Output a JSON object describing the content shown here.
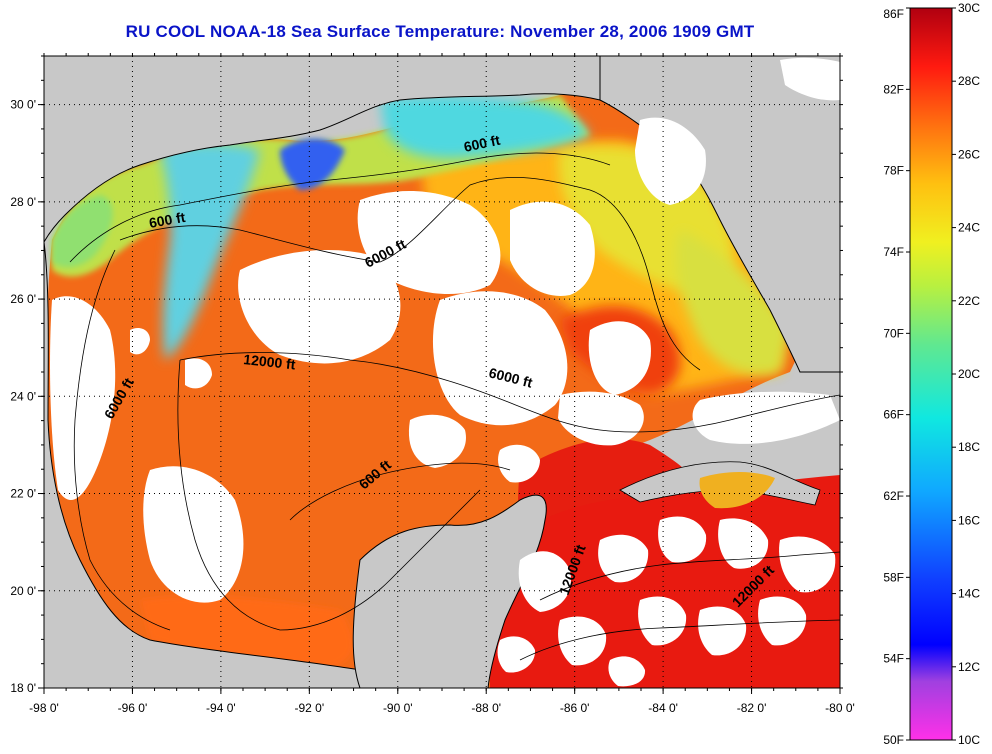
{
  "title": "RU COOL  NOAA-18  Sea Surface Temperature:  November 28, 2006 1909 GMT",
  "map": {
    "lon_ticks": [
      {
        "lon": -98,
        "label": "-98 0'"
      },
      {
        "lon": -96,
        "label": "-96 0'"
      },
      {
        "lon": -94,
        "label": "-94 0'"
      },
      {
        "lon": -92,
        "label": "-92 0'"
      },
      {
        "lon": -90,
        "label": "-90 0'"
      },
      {
        "lon": -88,
        "label": "-88 0'"
      },
      {
        "lon": -86,
        "label": "-86 0'"
      },
      {
        "lon": -84,
        "label": "-84 0'"
      },
      {
        "lon": -82,
        "label": "-82 0'"
      },
      {
        "lon": -80,
        "label": "-80 0'"
      }
    ],
    "lat_ticks": [
      {
        "lat": 18,
        "label": "18 0'"
      },
      {
        "lat": 20,
        "label": "20 0'"
      },
      {
        "lat": 22,
        "label": "22 0'"
      },
      {
        "lat": 24,
        "label": "24 0'"
      },
      {
        "lat": 26,
        "label": "26 0'"
      },
      {
        "lat": 28,
        "label": "28 0'"
      },
      {
        "lat": 30,
        "label": "30 0'"
      }
    ],
    "lon_range": [
      -98,
      -80
    ],
    "lat_range": [
      18,
      31
    ],
    "grid": "dotted",
    "colors": {
      "land": "#c8c8c8",
      "cloud": "#ffffff",
      "gulf_warm": "#f26a14",
      "loop_current": "#e82010",
      "caribbean": "#e81a10",
      "yucatan": "#ff4a10",
      "shelf_cool": "#b8e050",
      "coastal_cold": "#40c8e0",
      "eastern_gulf": "#ffb418"
    },
    "contour_labels": [
      "600 ft",
      "600 ft",
      "6000 ft",
      "12000 ft",
      "6000 ft",
      "6000 ft",
      "600 ft",
      "12000 ft",
      "12000 ft"
    ]
  },
  "colorbar": {
    "labels_f": [
      "86F",
      "82F",
      "78F",
      "74F",
      "70F",
      "66F",
      "62F",
      "58F",
      "54F",
      "50F"
    ],
    "labels_c": [
      "30C",
      "28C",
      "26C",
      "24C",
      "22C",
      "20C",
      "18C",
      "16C",
      "14C",
      "12C",
      "10C"
    ],
    "range_f": [
      50,
      86
    ],
    "range_c": [
      10,
      30
    ]
  }
}
